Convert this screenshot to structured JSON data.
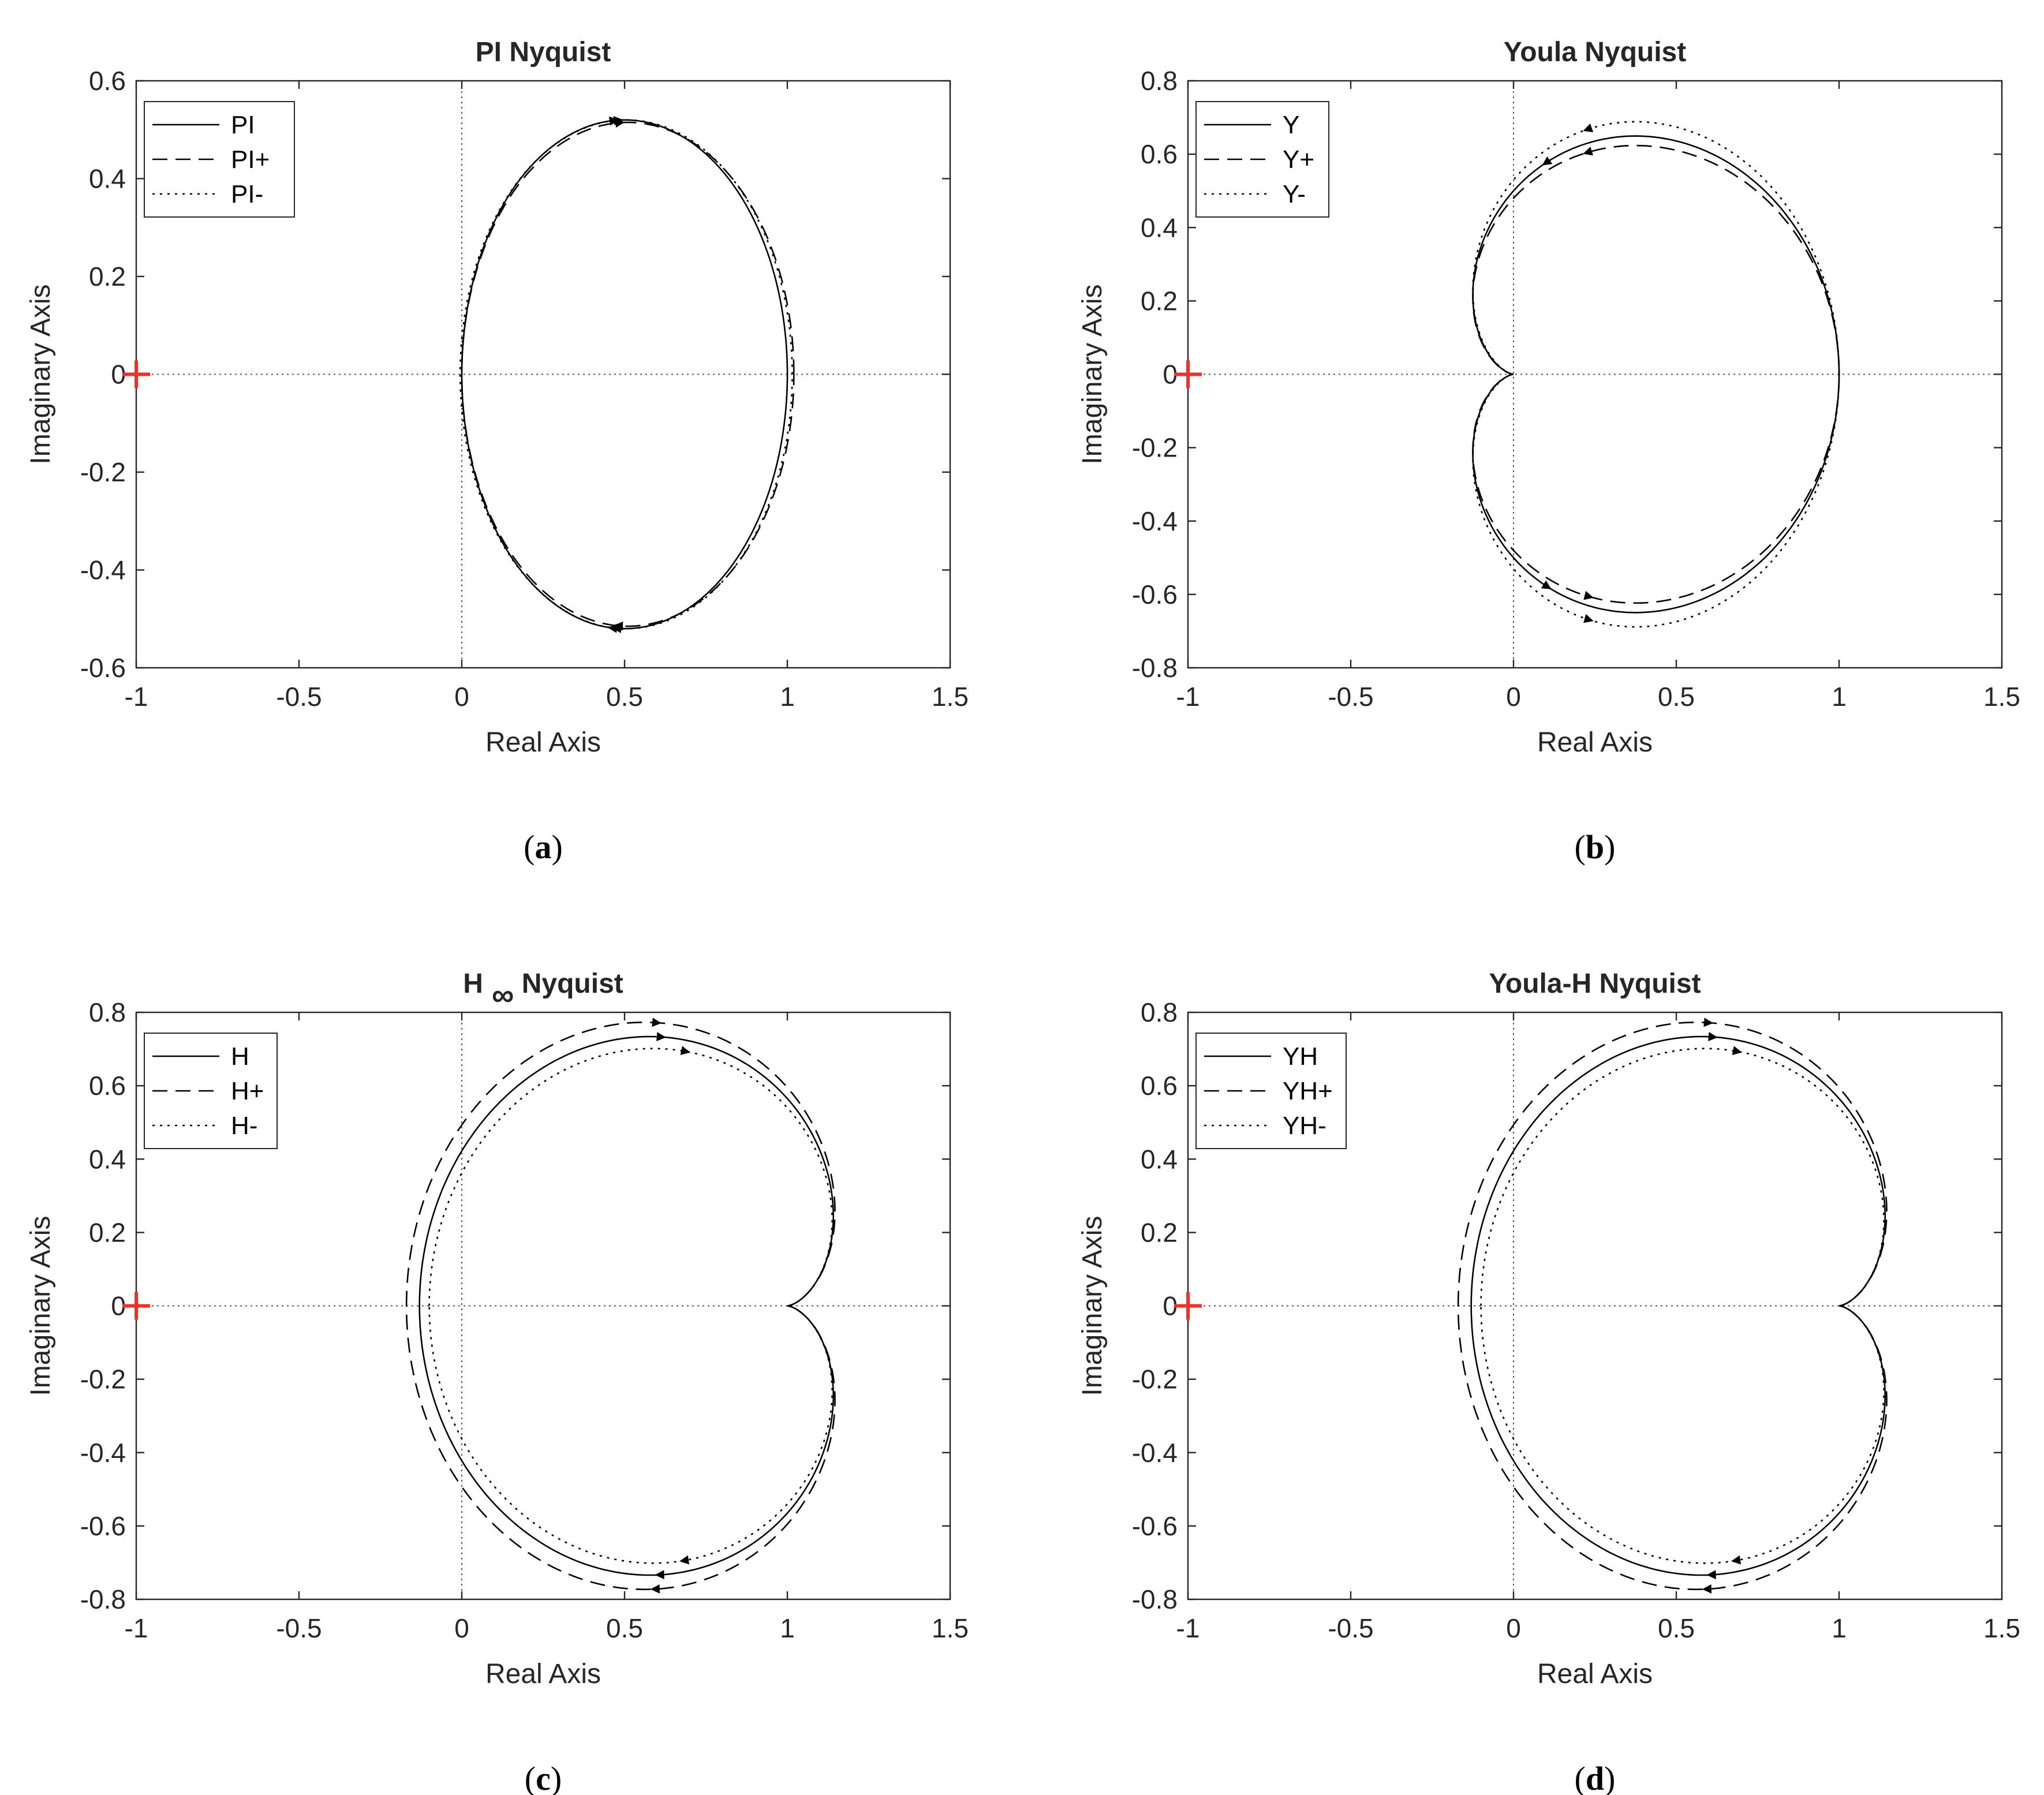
{
  "chart_data": [
    {
      "type": "line",
      "title": "PI Nyquist",
      "caption": "a",
      "xlabel": "Real Axis",
      "ylabel": "Imaginary Axis",
      "xlim": [
        -1,
        1.5
      ],
      "ylim": [
        -0.6,
        0.6
      ],
      "xticks": [
        -1,
        -0.5,
        0,
        0.5,
        1,
        1.5
      ],
      "xtick_labels": [
        "-1",
        "-0.5",
        "0",
        "0.5",
        "1",
        "1.5"
      ],
      "yticks": [
        -0.6,
        -0.4,
        -0.2,
        0,
        0.2,
        0.4,
        0.6
      ],
      "ytick_labels": [
        "-0.6",
        "-0.4",
        "-0.2",
        "0",
        "0.2",
        "0.4",
        "0.6"
      ],
      "critical_point": [
        -1,
        0
      ],
      "legend": "top-left",
      "grid": false,
      "series": [
        {
          "name": "PI",
          "style": "solid",
          "shape": "circle",
          "center": 0.5,
          "radius": 0.5,
          "ry": 0.52,
          "arrow_angle_deg": 94
        },
        {
          "name": "PI+",
          "style": "dashed",
          "shape": "circle",
          "center": 0.51,
          "radius": 0.51,
          "ry": 0.515,
          "arrow_angle_deg": 93
        },
        {
          "name": "PI-",
          "style": "dotted",
          "shape": "circle",
          "center": 0.505,
          "radius": 0.51,
          "ry": 0.52,
          "arrow_angle_deg": 93
        }
      ]
    },
    {
      "type": "line",
      "title": "Youla Nyquist",
      "caption": "b",
      "xlabel": "Real Axis",
      "ylabel": "Imaginary Axis",
      "xlim": [
        -1,
        1.5
      ],
      "ylim": [
        -0.8,
        0.8
      ],
      "xticks": [
        -1,
        -0.5,
        0,
        0.5,
        1,
        1.5
      ],
      "xtick_labels": [
        "-1",
        "-0.5",
        "0",
        "0.5",
        "1",
        "1.5"
      ],
      "yticks": [
        -0.8,
        -0.6,
        -0.4,
        -0.2,
        0,
        0.2,
        0.4,
        0.6,
        0.8
      ],
      "ytick_labels": [
        "-0.8",
        "-0.6",
        "-0.4",
        "-0.2",
        "0",
        "0.2",
        "0.4",
        "0.6",
        "0.8"
      ],
      "critical_point": [
        -1,
        0
      ],
      "legend": "top-left",
      "grid": false,
      "series": [
        {
          "name": "Y",
          "style": "solid",
          "shape": "cardioid",
          "a": 0.5,
          "sy": 1.0,
          "dir": 1,
          "arrow_angle_deg": 80
        },
        {
          "name": "Y+",
          "style": "dashed",
          "shape": "cardioid",
          "a": 0.5,
          "sy": 0.96,
          "dir": 1,
          "arrow_angle_deg": 70
        },
        {
          "name": "Y-",
          "style": "dotted",
          "shape": "cardioid",
          "a": 0.5,
          "sy": 1.06,
          "dir": 1,
          "arrow_angle_deg": 70
        }
      ]
    },
    {
      "type": "line",
      "title": "H",
      "title_subscript": "∞",
      "title_suffix": "Nyquist",
      "caption": "c",
      "xlabel": "Real Axis",
      "ylabel": "Imaginary Axis",
      "xlim": [
        -1,
        1.5
      ],
      "ylim": [
        -0.8,
        0.8
      ],
      "xticks": [
        -1,
        -0.5,
        0,
        0.5,
        1,
        1.5
      ],
      "xtick_labels": [
        "-1",
        "-0.5",
        "0",
        "0.5",
        "1",
        "1.5"
      ],
      "yticks": [
        -0.8,
        -0.6,
        -0.4,
        -0.2,
        0,
        0.2,
        0.4,
        0.6,
        0.8
      ],
      "ytick_labels": [
        "-0.8",
        "-0.6",
        "-0.4",
        "-0.2",
        "0",
        "0.2",
        "0.4",
        "0.6",
        "0.8"
      ],
      "critical_point": [
        -1,
        0
      ],
      "legend": "top-left",
      "grid": false,
      "series": [
        {
          "name": "H",
          "style": "solid",
          "shape": "cardioid",
          "a": 0.5,
          "sx": 1.13,
          "sy": 1.13,
          "dir": -1,
          "arrow_angle_deg": 62
        },
        {
          "name": "H+",
          "style": "dashed",
          "shape": "cardioid",
          "a": 0.5,
          "sx": 1.17,
          "sy": 1.19,
          "dir": -1,
          "arrow_angle_deg": 62
        },
        {
          "name": "H-",
          "style": "dotted",
          "shape": "cardioid",
          "a": 0.5,
          "sx": 1.1,
          "sy": 1.08,
          "dir": -1,
          "arrow_angle_deg": 66
        }
      ]
    },
    {
      "type": "line",
      "title": "Youla-H Nyquist",
      "caption": "d",
      "xlabel": "Real Axis",
      "ylabel": "Imaginary Axis",
      "xlim": [
        -1,
        1.5
      ],
      "ylim": [
        -0.8,
        0.8
      ],
      "xticks": [
        -1,
        -0.5,
        0,
        0.5,
        1,
        1.5
      ],
      "xtick_labels": [
        "-1",
        "-0.5",
        "0",
        "0.5",
        "1",
        "1.5"
      ],
      "yticks": [
        -0.8,
        -0.6,
        -0.4,
        -0.2,
        0,
        0.2,
        0.4,
        0.6,
        0.8
      ],
      "ytick_labels": [
        "-0.8",
        "-0.6",
        "-0.4",
        "-0.2",
        "0",
        "0.2",
        "0.4",
        "0.6",
        "0.8"
      ],
      "critical_point": [
        -1,
        0
      ],
      "legend": "top-left",
      "grid": false,
      "series": [
        {
          "name": "YH",
          "style": "solid",
          "shape": "cardioid",
          "a": 0.5,
          "sx": 1.13,
          "sy": 1.13,
          "dir": -1,
          "arrow_angle_deg": 62
        },
        {
          "name": "YH+",
          "style": "dashed",
          "shape": "cardioid",
          "a": 0.5,
          "sx": 1.17,
          "sy": 1.19,
          "dir": -1,
          "arrow_angle_deg": 62
        },
        {
          "name": "YH-",
          "style": "dotted",
          "shape": "cardioid",
          "a": 0.5,
          "sx": 1.1,
          "sy": 1.08,
          "dir": -1,
          "arrow_angle_deg": 66
        }
      ]
    }
  ]
}
